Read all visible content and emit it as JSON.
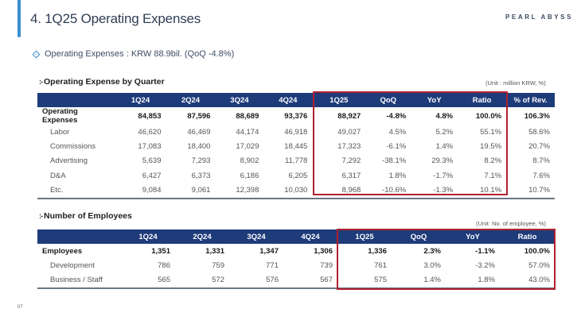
{
  "header": {
    "title": "4. 1Q25 Operating Expenses",
    "logo": "PEARL ABYSS",
    "subtitle": "Operating Expenses : KRW  88.9bil. (QoQ -4.8%)",
    "subtitle_icon": "diamond-bullet-icon",
    "accent_color": "#3a8fd0"
  },
  "opex": {
    "heading": "Operating Expense by Quarter",
    "heading_icon": "section-bullet-icon",
    "unit": "(Unit : million KRW, %)",
    "columns": [
      "",
      "1Q24",
      "2Q24",
      "3Q24",
      "4Q24",
      "1Q25",
      "QoQ",
      "YoY",
      "Ratio",
      "% of Rev."
    ],
    "rows": [
      {
        "label": "Operating Expenses",
        "total": true,
        "values": [
          "84,853",
          "87,596",
          "88,689",
          "93,376",
          "88,927",
          "-4.8%",
          "4.8%",
          "100.0%",
          "106.3%"
        ]
      },
      {
        "label": "Labor",
        "total": false,
        "values": [
          "46,620",
          "46,469",
          "44,174",
          "46,918",
          "49,027",
          "4.5%",
          "5.2%",
          "55.1%",
          "58.6%"
        ]
      },
      {
        "label": "Commissions",
        "total": false,
        "values": [
          "17,083",
          "18,400",
          "17,029",
          "18,445",
          "17,323",
          "-6.1%",
          "1.4%",
          "19.5%",
          "20.7%"
        ]
      },
      {
        "label": "Advertising",
        "total": false,
        "values": [
          "5,639",
          "7,293",
          "8,902",
          "11,778",
          "7,292",
          "-38.1%",
          "29.3%",
          "8.2%",
          "8.7%"
        ]
      },
      {
        "label": "D&A",
        "total": false,
        "values": [
          "6,427",
          "6,373",
          "6,186",
          "6,205",
          "6,317",
          "1.8%",
          "-1.7%",
          "7.1%",
          "7.6%"
        ]
      },
      {
        "label": "Etc.",
        "total": false,
        "values": [
          "9,084",
          "9,061",
          "12,398",
          "10,030",
          "8,968",
          "-10.6%",
          "-1.3%",
          "10.1%",
          "10.7%"
        ]
      }
    ]
  },
  "employees": {
    "heading": "Number of Employees",
    "heading_icon": "section-bullet-icon",
    "unit": "(Unit: No. of employee, %)",
    "columns": [
      "",
      "1Q24",
      "2Q24",
      "3Q24",
      "4Q24",
      "1Q25",
      "QoQ",
      "YoY",
      "Ratio"
    ],
    "rows": [
      {
        "label": "Employees",
        "total": true,
        "values": [
          "1,351",
          "1,331",
          "1,347",
          "1,306",
          "1,336",
          "2.3%",
          "-1.1%",
          "100.0%"
        ]
      },
      {
        "label": "Development",
        "total": false,
        "values": [
          "786",
          "759",
          "771",
          "739",
          "761",
          "3.0%",
          "-3.2%",
          "57.0%"
        ]
      },
      {
        "label": "Business / Staff",
        "total": false,
        "values": [
          "565",
          "572",
          "576",
          "567",
          "575",
          "1.4%",
          "1.8%",
          "43.0%"
        ]
      }
    ]
  },
  "colors": {
    "header_navy": "#1e3b7a",
    "highlight_red": "#b0202e"
  },
  "page_number": "07"
}
